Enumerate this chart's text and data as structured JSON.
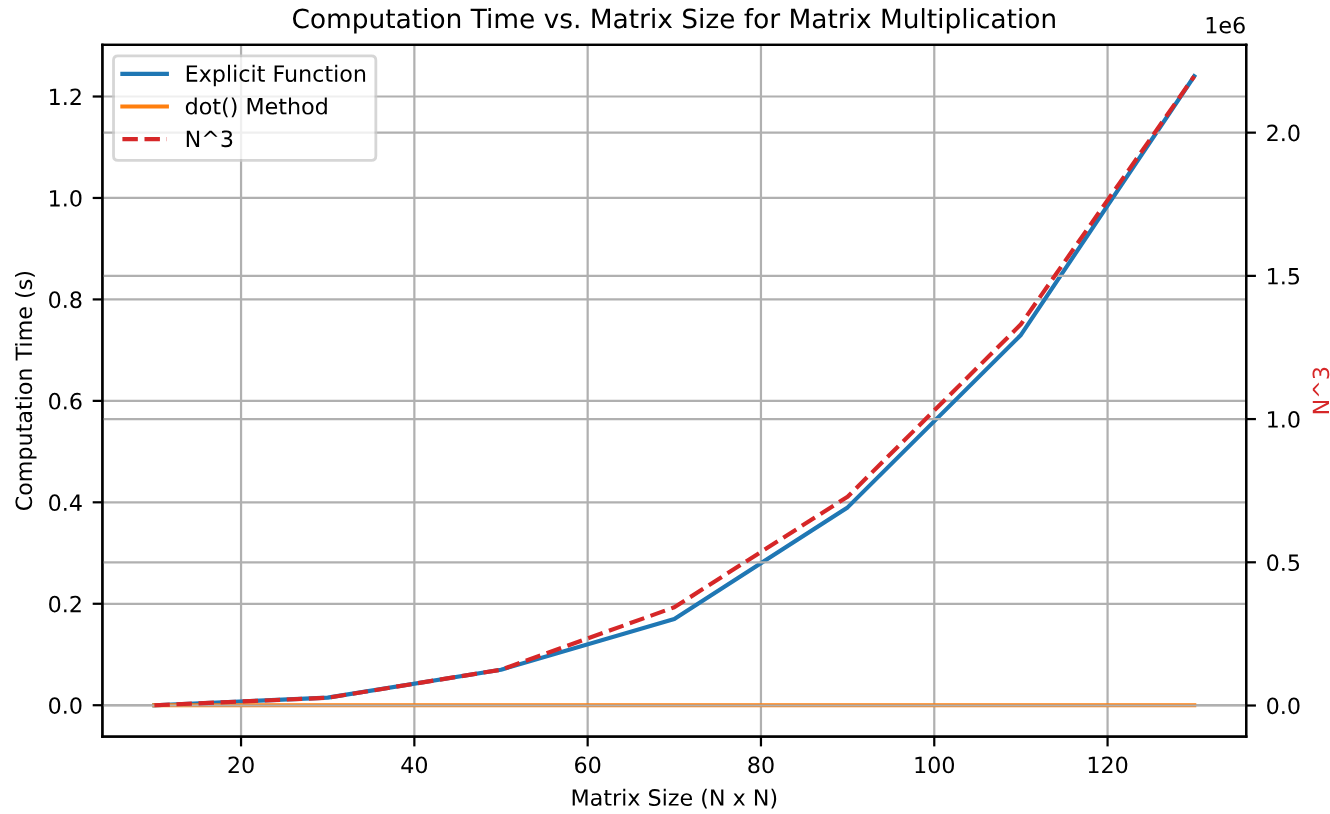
{
  "chart_data": {
    "type": "line",
    "title": "Computation Time vs. Matrix Size for Matrix Multiplication",
    "xlabel": "Matrix Size (N x N)",
    "ylabel": "Computation Time (s)",
    "y2label": "N^3",
    "x": [
      10,
      30,
      50,
      70,
      90,
      110,
      130
    ],
    "series": [
      {
        "name": "Explicit Function",
        "color": "#1f77b4",
        "values": [
          0.0,
          0.015,
          0.07,
          0.17,
          0.39,
          0.73,
          1.24
        ]
      },
      {
        "name": "dot() Method",
        "color": "#ff7f0e",
        "values": [
          0.0,
          0.0,
          0.0,
          0.0,
          0.0,
          0.0,
          0.0
        ]
      },
      {
        "name": "N^3",
        "color": "#d62728",
        "line_style": "dashed",
        "axis": "y2",
        "values": [
          0.001,
          0.027,
          0.125,
          0.343,
          0.729,
          1.331,
          2.197
        ]
      }
    ],
    "xlim": [
      4,
      136
    ],
    "xticks": [
      20,
      40,
      60,
      80,
      100,
      120
    ],
    "ylim": [
      -0.062,
      1.302
    ],
    "yticks": [
      {
        "value": 0,
        "label": "0.0"
      },
      0.2,
      0.4,
      0.6,
      0.8,
      {
        "value": 1,
        "label": "1.0"
      },
      1.2
    ],
    "y2lim": [
      -0.1088,
      2.3068
    ],
    "y2ticks": [
      {
        "value": 0,
        "label": "0.0"
      },
      0.5,
      {
        "value": 1,
        "label": "1.0"
      },
      1.5,
      {
        "value": 2,
        "label": "2.0"
      }
    ],
    "annotations": [
      "1e6"
    ],
    "grid": true,
    "legend": "top left"
  }
}
